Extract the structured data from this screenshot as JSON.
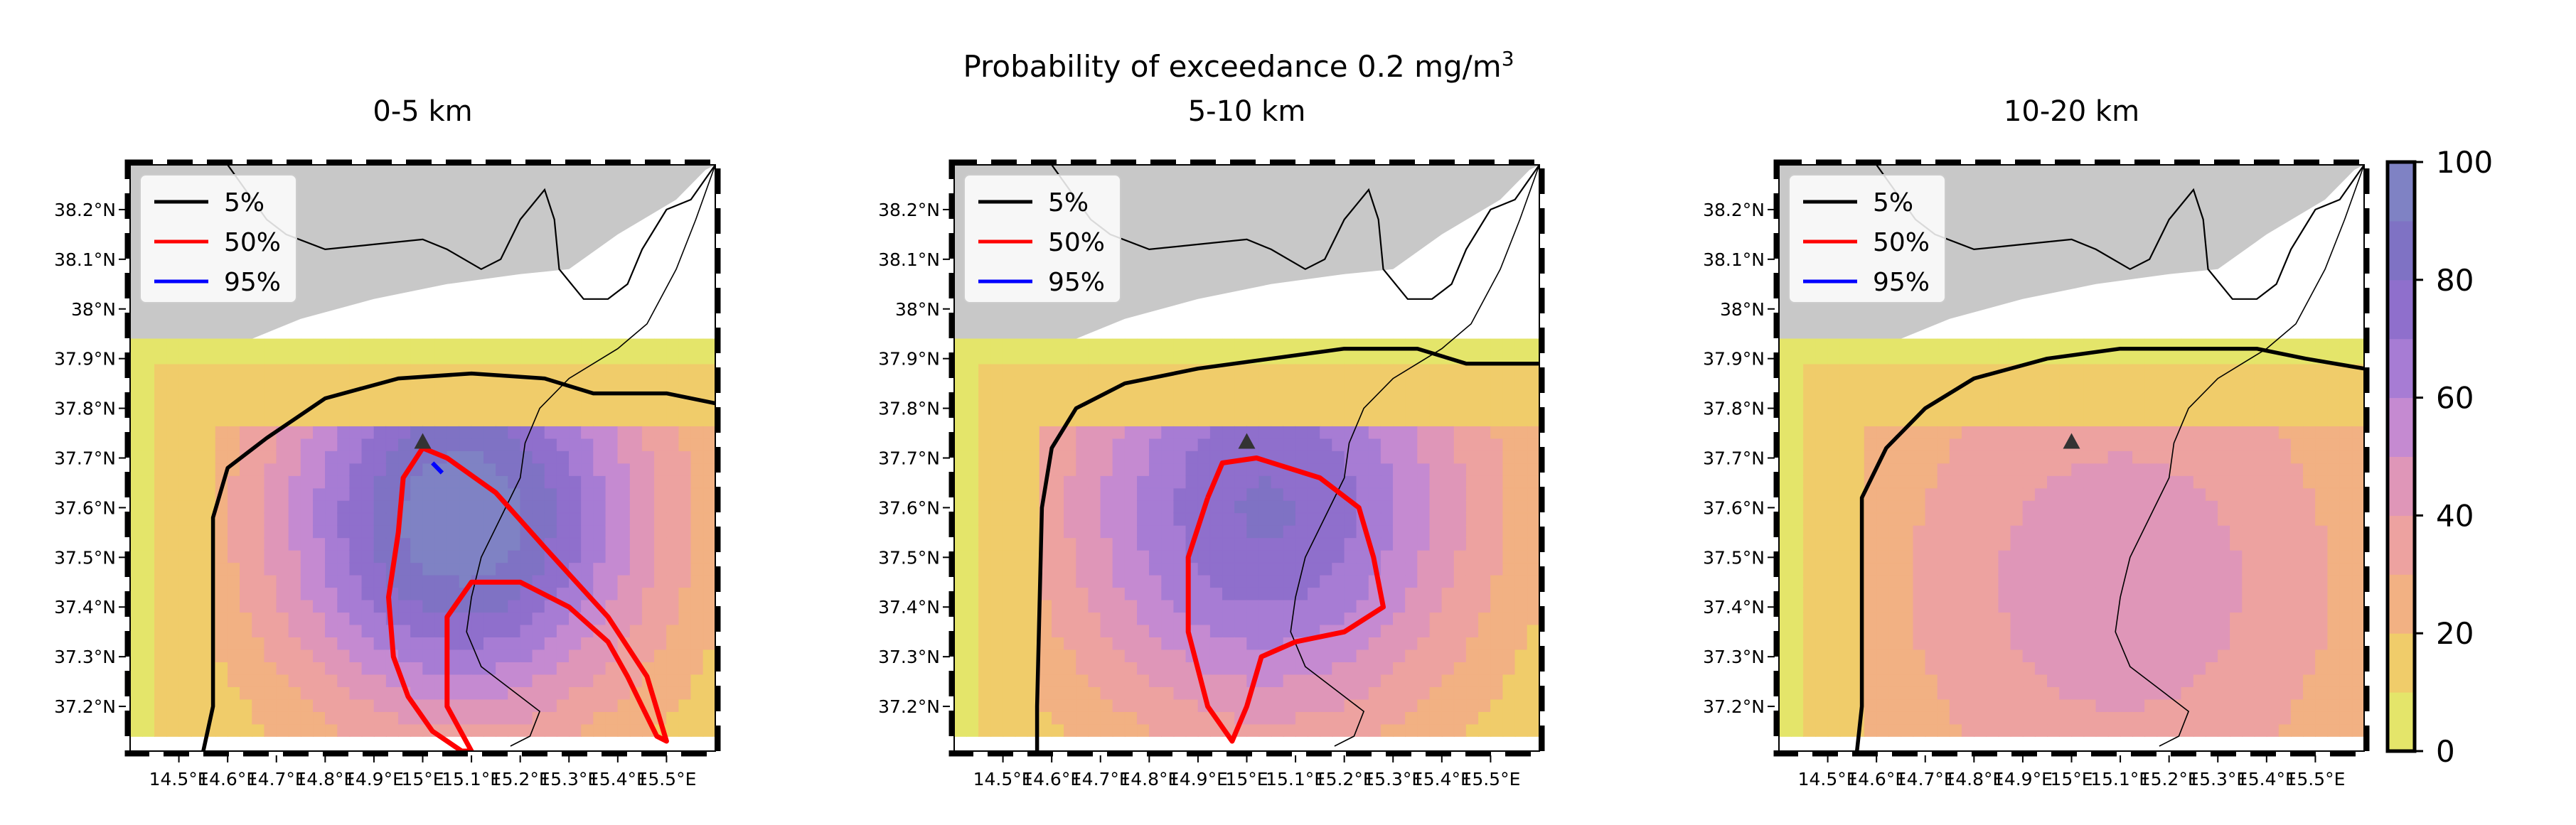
{
  "figure": {
    "title_line1": "Probability of exceedance 0.2 mg/m",
    "title_sup": "3"
  },
  "chart_data": [
    {
      "type": "heatmap",
      "title": "0-5 km",
      "xlim": [
        14.4,
        15.6
      ],
      "ylim": [
        37.11,
        38.29
      ],
      "x_ticks": [
        "14.5°E",
        "14.6°E",
        "14.7°E",
        "14.8°E",
        "14.9°E",
        "15°E",
        "15.1°E",
        "15.2°E",
        "15.3°E",
        "15.4°E",
        "15.5°E"
      ],
      "y_ticks": [
        "37.2°N",
        "37.3°N",
        "37.4°N",
        "37.5°N",
        "37.6°N",
        "37.7°N",
        "37.8°N",
        "37.9°N",
        "38°N",
        "38.1°N",
        "38.2°N"
      ],
      "source": {
        "lon": 15.0,
        "lat": 37.73
      },
      "field_extent": {
        "lon": [
          14.4,
          15.6
        ],
        "lat": [
          37.14,
          37.94
        ]
      },
      "peak": {
        "lon": 15.08,
        "lat": 37.58,
        "value": 90
      },
      "legend": [
        "5%",
        "50%",
        "95%"
      ],
      "legend_position": "upper-left",
      "contours": {
        "5%": [
          [
            14.55,
            37.11
          ],
          [
            14.57,
            37.2
          ],
          [
            14.57,
            37.58
          ],
          [
            14.6,
            37.68
          ],
          [
            14.68,
            37.74
          ],
          [
            14.8,
            37.82
          ],
          [
            14.95,
            37.86
          ],
          [
            15.1,
            37.87
          ],
          [
            15.25,
            37.86
          ],
          [
            15.35,
            37.83
          ],
          [
            15.5,
            37.83
          ],
          [
            15.6,
            37.81
          ]
        ],
        "50%": [
          [
            15.0,
            37.72
          ],
          [
            14.96,
            37.66
          ],
          [
            14.95,
            37.55
          ],
          [
            14.93,
            37.42
          ],
          [
            14.94,
            37.3
          ],
          [
            14.97,
            37.22
          ],
          [
            15.02,
            37.15
          ],
          [
            15.08,
            37.11
          ],
          [
            15.1,
            37.11
          ],
          [
            15.05,
            37.2
          ],
          [
            15.05,
            37.38
          ],
          [
            15.1,
            37.45
          ],
          [
            15.2,
            37.45
          ],
          [
            15.3,
            37.4
          ],
          [
            15.38,
            37.33
          ],
          [
            15.42,
            37.26
          ],
          [
            15.45,
            37.2
          ],
          [
            15.48,
            37.14
          ],
          [
            15.5,
            37.13
          ],
          [
            15.46,
            37.26
          ],
          [
            15.38,
            37.38
          ],
          [
            15.25,
            37.52
          ],
          [
            15.15,
            37.63
          ],
          [
            15.05,
            37.7
          ],
          [
            15.0,
            37.72
          ]
        ],
        "95%": [
          [
            15.02,
            37.69
          ],
          [
            15.03,
            37.68
          ],
          [
            15.04,
            37.67
          ]
        ]
      },
      "colorbar": {
        "label_ticks": [
          0,
          20,
          40,
          60,
          80,
          100
        ],
        "colormap": "yellow-to-purple (plasma_r, alpha)"
      }
    },
    {
      "type": "heatmap",
      "title": "5-10 km",
      "xlim": [
        14.4,
        15.6
      ],
      "ylim": [
        37.11,
        38.29
      ],
      "x_ticks": [
        "14.5°E",
        "14.6°E",
        "14.7°E",
        "14.8°E",
        "14.9°E",
        "15°E",
        "15.1°E",
        "15.2°E",
        "15.3°E",
        "15.4°E",
        "15.5°E"
      ],
      "y_ticks": [
        "37.2°N",
        "37.3°N",
        "37.4°N",
        "37.5°N",
        "37.6°N",
        "37.7°N",
        "37.8°N",
        "37.9°N",
        "38°N",
        "38.1°N",
        "38.2°N"
      ],
      "source": {
        "lon": 15.0,
        "lat": 37.73
      },
      "field_extent": {
        "lon": [
          14.4,
          15.6
        ],
        "lat": [
          37.14,
          37.94
        ]
      },
      "peak": {
        "lon": 15.04,
        "lat": 37.6,
        "value": 75
      },
      "legend": [
        "5%",
        "50%",
        "95%"
      ],
      "legend_position": "upper-left",
      "contours": {
        "5%": [
          [
            14.57,
            37.11
          ],
          [
            14.57,
            37.2
          ],
          [
            14.58,
            37.6
          ],
          [
            14.6,
            37.72
          ],
          [
            14.65,
            37.8
          ],
          [
            14.75,
            37.85
          ],
          [
            14.9,
            37.88
          ],
          [
            15.05,
            37.9
          ],
          [
            15.2,
            37.92
          ],
          [
            15.35,
            37.92
          ],
          [
            15.45,
            37.89
          ],
          [
            15.6,
            37.89
          ]
        ],
        "50%": [
          [
            14.92,
            37.62
          ],
          [
            14.95,
            37.69
          ],
          [
            15.02,
            37.7
          ],
          [
            15.15,
            37.66
          ],
          [
            15.23,
            37.6
          ],
          [
            15.26,
            37.5
          ],
          [
            15.28,
            37.4
          ],
          [
            15.2,
            37.35
          ],
          [
            15.1,
            37.33
          ],
          [
            15.03,
            37.3
          ],
          [
            15.0,
            37.2
          ],
          [
            14.97,
            37.13
          ],
          [
            14.92,
            37.2
          ],
          [
            14.88,
            37.35
          ],
          [
            14.88,
            37.5
          ],
          [
            14.92,
            37.62
          ]
        ]
      },
      "colorbar": {
        "label_ticks": [
          0,
          20,
          40,
          60,
          80,
          100
        ],
        "colormap": "yellow-to-purple (plasma_r, alpha)"
      }
    },
    {
      "type": "heatmap",
      "title": "10-20 km",
      "xlim": [
        14.4,
        15.6
      ],
      "ylim": [
        37.11,
        38.29
      ],
      "x_ticks": [
        "14.5°E",
        "14.6°E",
        "14.7°E",
        "14.8°E",
        "14.9°E",
        "15°E",
        "15.1°E",
        "15.2°E",
        "15.3°E",
        "15.4°E",
        "15.5°E"
      ],
      "y_ticks": [
        "37.2°N",
        "37.3°N",
        "37.4°N",
        "37.5°N",
        "37.6°N",
        "37.7°N",
        "37.8°N",
        "37.9°N",
        "38°N",
        "38.1°N",
        "38.2°N"
      ],
      "source": {
        "lon": 15.0,
        "lat": 37.73
      },
      "field_extent": {
        "lon": [
          14.4,
          15.6
        ],
        "lat": [
          37.14,
          37.94
        ]
      },
      "peak": {
        "lon": 15.1,
        "lat": 37.45,
        "value": 42
      },
      "legend": [
        "5%",
        "50%",
        "95%"
      ],
      "legend_position": "upper-left",
      "contours": {
        "5%": [
          [
            14.56,
            37.11
          ],
          [
            14.57,
            37.2
          ],
          [
            14.57,
            37.62
          ],
          [
            14.62,
            37.72
          ],
          [
            14.7,
            37.8
          ],
          [
            14.8,
            37.86
          ],
          [
            14.95,
            37.9
          ],
          [
            15.1,
            37.92
          ],
          [
            15.25,
            37.92
          ],
          [
            15.38,
            37.92
          ],
          [
            15.48,
            37.9
          ],
          [
            15.6,
            37.88
          ]
        ]
      },
      "colorbar": {
        "label_ticks": [
          0,
          20,
          40,
          60,
          80,
          100
        ],
        "colormap": "yellow-to-purple (plasma_r, alpha)"
      }
    }
  ],
  "colorbar": {
    "ticks": [
      "0",
      "20",
      "40",
      "60",
      "80",
      "100"
    ],
    "colors": [
      "#e4e56a",
      "#f0cc6a",
      "#f2b183",
      "#eda2a0",
      "#df96b8",
      "#c58ad1",
      "#a77cd4",
      "#8f6fcc",
      "#7f72c4",
      "#7f82c4"
    ]
  },
  "colors": {
    "land": "#c8c8c8",
    "contour_5": "#000000",
    "contour_50": "#ff0000",
    "contour_95": "#0000ff"
  }
}
